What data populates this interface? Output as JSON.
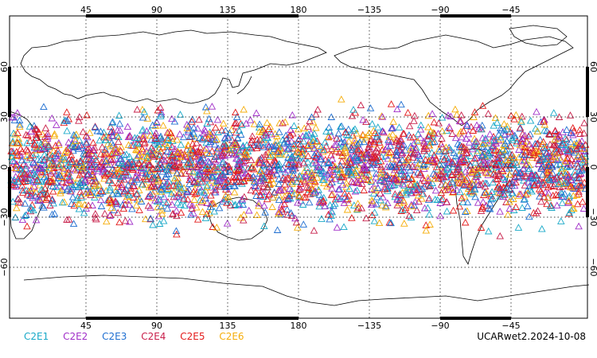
{
  "map": {
    "lon_labels_top": [
      "45",
      "90",
      "135",
      "180",
      "−135",
      "−90",
      "−45"
    ],
    "lon_labels_bottom": [
      "45",
      "90",
      "135",
      "180",
      "−135",
      "−90",
      "−45"
    ],
    "lat_labels_left": [
      "60",
      "30",
      "0",
      "−30",
      "−60"
    ],
    "lat_labels_right": [
      "60",
      "30",
      "0",
      "−30",
      "−60"
    ],
    "marker_symbol": "triangle",
    "background_color": "#ffffff",
    "coastline_color": "#000000"
  },
  "legend": [
    {
      "label": "C2E1",
      "color": "#19a9c8"
    },
    {
      "label": "C2E2",
      "color": "#a12fc8"
    },
    {
      "label": "C2E3",
      "color": "#1f6fd1"
    },
    {
      "label": "C2E4",
      "color": "#c81f4a"
    },
    {
      "label": "C2E5",
      "color": "#e31b1b"
    },
    {
      "label": "C2E6",
      "color": "#f5ad0a"
    }
  ],
  "caption": "UCARwet2.2024-10-08"
}
